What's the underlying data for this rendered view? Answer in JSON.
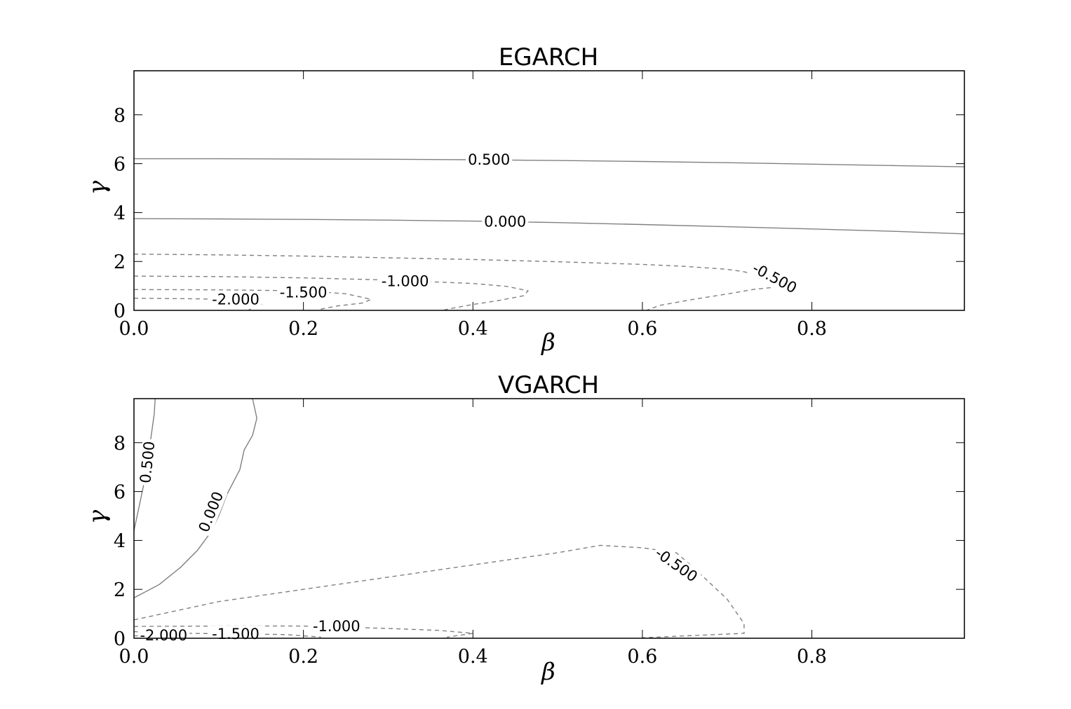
{
  "chart_data": [
    {
      "type": "contour",
      "title": "EGARCH",
      "xlabel": "β",
      "ylabel": "γ",
      "xlim": [
        0,
        0.98
      ],
      "ylim": [
        0,
        9.8
      ],
      "xticks": [
        "0.0",
        "0.2",
        "0.4",
        "0.6",
        "0.8"
      ],
      "xtick_values": [
        0,
        0.2,
        0.4,
        0.6,
        0.8
      ],
      "yticks": [
        "0",
        "2",
        "4",
        "6",
        "8"
      ],
      "ytick_values": [
        0,
        2,
        4,
        6,
        8
      ],
      "grid": false,
      "contours": [
        {
          "level": 0.5,
          "label": "0.500",
          "style": "solid",
          "points": [
            [
              0,
              6.2
            ],
            [
              0.1,
              6.2
            ],
            [
              0.2,
              6.19
            ],
            [
              0.3,
              6.18
            ],
            [
              0.4,
              6.16
            ],
            [
              0.5,
              6.13
            ],
            [
              0.6,
              6.09
            ],
            [
              0.7,
              6.04
            ],
            [
              0.8,
              5.98
            ],
            [
              0.9,
              5.92
            ],
            [
              0.98,
              5.87
            ]
          ],
          "label_at": [
            0.419,
            6.16
          ],
          "label_angle": 0
        },
        {
          "level": 0.0,
          "label": "0.000",
          "style": "solid",
          "points": [
            [
              0,
              3.75
            ],
            [
              0.1,
              3.74
            ],
            [
              0.2,
              3.72
            ],
            [
              0.3,
              3.69
            ],
            [
              0.4,
              3.65
            ],
            [
              0.5,
              3.59
            ],
            [
              0.6,
              3.51
            ],
            [
              0.7,
              3.42
            ],
            [
              0.8,
              3.33
            ],
            [
              0.9,
              3.23
            ],
            [
              0.98,
              3.13
            ]
          ],
          "label_at": [
            0.438,
            3.63
          ],
          "label_angle": 0
        },
        {
          "level": -0.5,
          "label": "-0.500",
          "style": "dashed",
          "points": [
            [
              0,
              2.3
            ],
            [
              0.1,
              2.27
            ],
            [
              0.2,
              2.22
            ],
            [
              0.3,
              2.15
            ],
            [
              0.4,
              2.08
            ],
            [
              0.5,
              1.99
            ],
            [
              0.6,
              1.88
            ],
            [
              0.65,
              1.8
            ],
            [
              0.7,
              1.68
            ],
            [
              0.72,
              1.58
            ],
            [
              0.75,
              1.3
            ],
            [
              0.77,
              1.0
            ],
            [
              0.73,
              0.85
            ],
            [
              0.7,
              0.67
            ],
            [
              0.66,
              0.45
            ],
            [
              0.62,
              0.2
            ],
            [
              0.605,
              0.0
            ]
          ],
          "label_at": [
            0.756,
            1.32
          ],
          "label_angle": 28
        },
        {
          "level": -1.0,
          "label": "-1.000",
          "style": "dashed",
          "points": [
            [
              0,
              1.4
            ],
            [
              0.1,
              1.38
            ],
            [
              0.2,
              1.33
            ],
            [
              0.3,
              1.24
            ],
            [
              0.4,
              1.1
            ],
            [
              0.44,
              0.98
            ],
            [
              0.465,
              0.8
            ],
            [
              0.46,
              0.6
            ],
            [
              0.43,
              0.4
            ],
            [
              0.4,
              0.24
            ],
            [
              0.37,
              0.05
            ],
            [
              0.365,
              0.0
            ]
          ],
          "label_at": [
            0.32,
            1.19
          ],
          "label_angle": 0
        },
        {
          "level": -1.5,
          "label": "-1.500",
          "style": "dashed",
          "points": [
            [
              0,
              0.85
            ],
            [
              0.1,
              0.84
            ],
            [
              0.2,
              0.8
            ],
            [
              0.25,
              0.68
            ],
            [
              0.28,
              0.45
            ],
            [
              0.27,
              0.3
            ],
            [
              0.24,
              0.18
            ],
            [
              0.22,
              0.05
            ],
            [
              0.22,
              0.0
            ]
          ],
          "label_at": [
            0.2,
            0.73
          ],
          "label_angle": 0
        },
        {
          "level": -2.0,
          "label": "-2.000",
          "style": "dashed",
          "points": [
            [
              0,
              0.5
            ],
            [
              0.08,
              0.47
            ],
            [
              0.13,
              0.4
            ],
            [
              0.15,
              0.25
            ],
            [
              0.14,
              0.1
            ],
            [
              0.135,
              0.0
            ]
          ],
          "label_at": [
            0.12,
            0.44
          ],
          "label_angle": 0
        }
      ]
    },
    {
      "type": "contour",
      "title": "VGARCH",
      "xlabel": "β",
      "ylabel": "γ",
      "xlim": [
        0,
        0.98
      ],
      "ylim": [
        0,
        9.8
      ],
      "xticks": [
        "0.0",
        "0.2",
        "0.4",
        "0.6",
        "0.8"
      ],
      "xtick_values": [
        0,
        0.2,
        0.4,
        0.6,
        0.8
      ],
      "yticks": [
        "0",
        "2",
        "4",
        "6",
        "8"
      ],
      "ytick_values": [
        0,
        2,
        4,
        6,
        8
      ],
      "grid": false,
      "contours": [
        {
          "level": 0.5,
          "label": "0.500",
          "style": "solid",
          "points": [
            [
              0,
              4.4
            ],
            [
              0.005,
              5.2
            ],
            [
              0.011,
              6.2
            ],
            [
              0.016,
              7.2
            ],
            [
              0.02,
              8.2
            ],
            [
              0.024,
              9.2
            ],
            [
              0.025,
              9.8
            ]
          ],
          "label_at": [
            0.016,
            7.2
          ],
          "label_angle": -84
        },
        {
          "level": 0.0,
          "label": "0.000",
          "style": "solid",
          "points": [
            [
              0,
              1.65
            ],
            [
              0.03,
              2.2
            ],
            [
              0.055,
              2.9
            ],
            [
              0.075,
              3.6
            ],
            [
              0.09,
              4.3
            ],
            [
              0.1,
              5.0
            ],
            [
              0.11,
              5.9
            ],
            [
              0.125,
              6.9
            ],
            [
              0.13,
              7.7
            ],
            [
              0.14,
              8.3
            ],
            [
              0.145,
              9.0
            ],
            [
              0.14,
              9.8
            ]
          ],
          "label_at": [
            0.091,
            5.17
          ],
          "label_angle": -68
        },
        {
          "level": -0.5,
          "label": "-0.500",
          "style": "dashed",
          "points": [
            [
              0,
              0.75
            ],
            [
              0.1,
              1.5
            ],
            [
              0.2,
              2.0
            ],
            [
              0.3,
              2.5
            ],
            [
              0.4,
              3.0
            ],
            [
              0.5,
              3.5
            ],
            [
              0.55,
              3.8
            ],
            [
              0.6,
              3.7
            ],
            [
              0.64,
              3.5
            ],
            [
              0.66,
              2.9
            ],
            [
              0.7,
              1.6
            ],
            [
              0.72,
              0.6
            ],
            [
              0.72,
              0.2
            ],
            [
              0.6,
              0.02
            ],
            [
              0.6,
              0.0
            ]
          ],
          "label_at": [
            0.64,
            3.0
          ],
          "label_angle": 35
        },
        {
          "level": -1.0,
          "label": "-1.000",
          "style": "dashed",
          "points": [
            [
              0,
              0.48
            ],
            [
              0.1,
              0.5
            ],
            [
              0.2,
              0.5
            ],
            [
              0.3,
              0.4
            ],
            [
              0.36,
              0.32
            ],
            [
              0.4,
              0.2
            ],
            [
              0.37,
              0.05
            ],
            [
              0.37,
              0.0
            ]
          ],
          "label_at": [
            0.239,
            0.48
          ],
          "label_angle": 0
        },
        {
          "level": -1.5,
          "label": "-1.500",
          "style": "dashed",
          "points": [
            [
              0,
              0.27
            ],
            [
              0.06,
              0.2
            ],
            [
              0.12,
              0.18
            ],
            [
              0.18,
              0.15
            ],
            [
              0.22,
              0.05
            ],
            [
              0.22,
              0.0
            ]
          ],
          "label_at": [
            0.12,
            0.17
          ],
          "label_angle": 0
        },
        {
          "level": -2.0,
          "label": "-2.000",
          "style": "dashed",
          "points": [
            [
              0,
              0.1
            ],
            [
              0.03,
              0.09
            ],
            [
              0.055,
              0.05
            ],
            [
              0.05,
              0.0
            ]
          ],
          "label_at": [
            0.035,
            0.12
          ],
          "label_angle": 0
        }
      ]
    }
  ]
}
